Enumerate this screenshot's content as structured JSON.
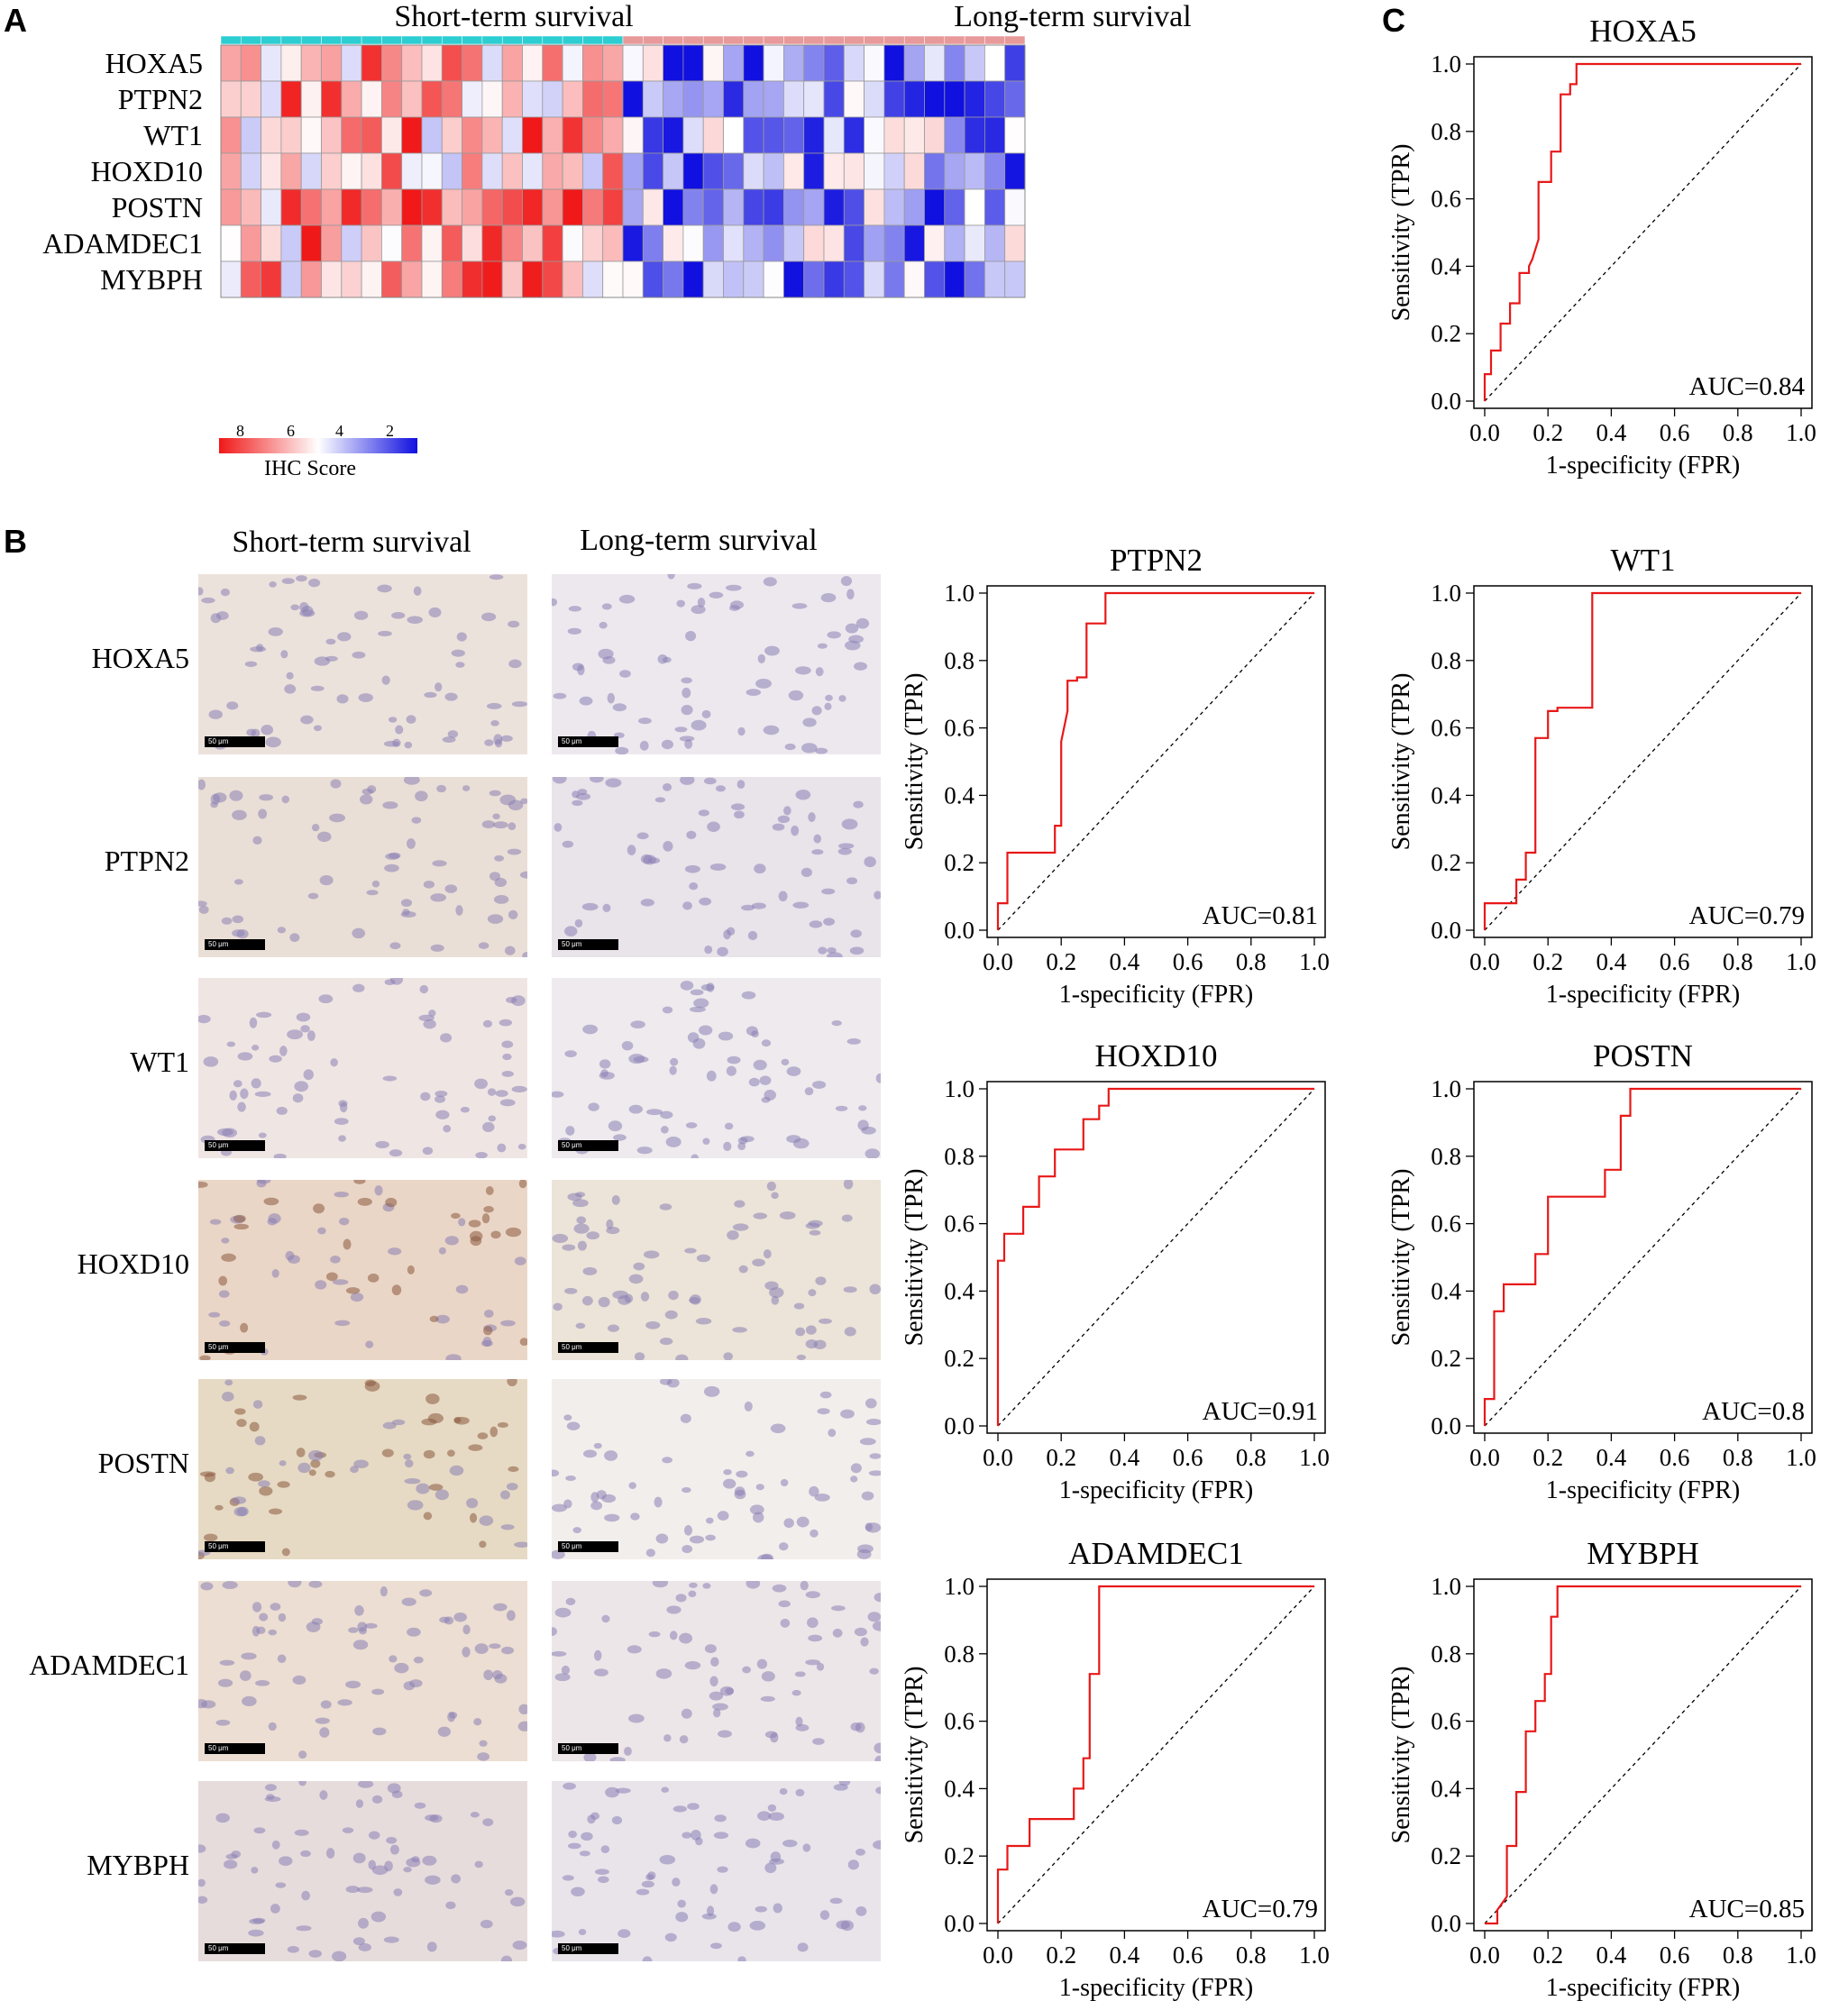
{
  "panel_letters": {
    "a": "A",
    "b": "B",
    "c": "C"
  },
  "heatmap": {
    "group_labels": {
      "short": "Short-term survival",
      "long": "Long-term survival"
    },
    "group_colors": {
      "short": "#2CCED2",
      "long": "#E8999A"
    },
    "rows": [
      "HOXA5",
      "PTPN2",
      "WT1",
      "HOXD10",
      "POSTN",
      "ADAMDEC1",
      "MYBPH"
    ],
    "legend_ticks": [
      "8",
      "6",
      "4",
      "2"
    ],
    "legend_title": "IHC Score",
    "colors": {
      "low": "#1010E0",
      "mid": "#FFFFFF",
      "high": "#F01818"
    }
  },
  "ihc": {
    "col_titles": [
      "Short-term survival",
      "Long-term survival"
    ],
    "rows": [
      "HOXA5",
      "PTPN2",
      "WT1",
      "HOXD10",
      "POSTN",
      "ADAMDEC1",
      "MYBPH"
    ],
    "scalebar": "50 μm"
  },
  "chart_data": [
    {
      "type": "line",
      "title": "HOXA5",
      "xlabel": "1-specificity (FPR)",
      "ylabel": "Sensitivity (TPR)",
      "auc_label": "AUC=0.84",
      "xlim": [
        0,
        1
      ],
      "ylim": [
        0,
        1
      ],
      "ticks": [
        "0.0",
        "0.2",
        "0.4",
        "0.6",
        "0.8",
        "1.0"
      ],
      "x": [
        0,
        0,
        0.02,
        0.02,
        0.05,
        0.05,
        0.08,
        0.08,
        0.11,
        0.11,
        0.14,
        0.14,
        0.15,
        0.17,
        0.17,
        0.21,
        0.21,
        0.24,
        0.24,
        0.27,
        0.27,
        0.29,
        0.29,
        1.0
      ],
      "y": [
        0,
        0.08,
        0.08,
        0.15,
        0.15,
        0.23,
        0.23,
        0.29,
        0.29,
        0.38,
        0.38,
        0.4,
        0.42,
        0.48,
        0.65,
        0.65,
        0.74,
        0.74,
        0.91,
        0.91,
        0.94,
        0.94,
        1.0,
        1.0
      ]
    },
    {
      "type": "line",
      "title": "PTPN2",
      "xlabel": "1-specificity (FPR)",
      "ylabel": "Sensitivity (TPR)",
      "auc_label": "AUC=0.81",
      "xlim": [
        0,
        1
      ],
      "ylim": [
        0,
        1
      ],
      "ticks": [
        "0.0",
        "0.2",
        "0.4",
        "0.6",
        "0.8",
        "1.0"
      ],
      "x": [
        0,
        0,
        0.03,
        0.03,
        0.18,
        0.18,
        0.2,
        0.2,
        0.22,
        0.22,
        0.25,
        0.25,
        0.28,
        0.28,
        0.34,
        0.34,
        1.0
      ],
      "y": [
        0,
        0.08,
        0.08,
        0.23,
        0.23,
        0.31,
        0.31,
        0.56,
        0.65,
        0.74,
        0.74,
        0.75,
        0.75,
        0.91,
        0.91,
        1.0,
        1.0
      ]
    },
    {
      "type": "line",
      "title": "WT1",
      "xlabel": "1-specificity (FPR)",
      "ylabel": "Sensitivity (TPR)",
      "auc_label": "AUC=0.79",
      "xlim": [
        0,
        1
      ],
      "ylim": [
        0,
        1
      ],
      "ticks": [
        "0.0",
        "0.2",
        "0.4",
        "0.6",
        "0.8",
        "1.0"
      ],
      "x": [
        0,
        0,
        0.1,
        0.1,
        0.13,
        0.13,
        0.16,
        0.16,
        0.2,
        0.2,
        0.23,
        0.23,
        0.34,
        0.34,
        1.0
      ],
      "y": [
        0,
        0.08,
        0.08,
        0.15,
        0.15,
        0.23,
        0.23,
        0.57,
        0.57,
        0.65,
        0.65,
        0.66,
        0.66,
        1.0,
        1.0
      ]
    },
    {
      "type": "line",
      "title": "HOXD10",
      "xlabel": "1-specificity (FPR)",
      "ylabel": "Sensitivity (TPR)",
      "auc_label": "AUC=0.91",
      "xlim": [
        0,
        1
      ],
      "ylim": [
        0,
        1
      ],
      "ticks": [
        "0.0",
        "0.2",
        "0.4",
        "0.6",
        "0.8",
        "1.0"
      ],
      "x": [
        0,
        0,
        0.02,
        0.02,
        0.08,
        0.08,
        0.13,
        0.13,
        0.18,
        0.18,
        0.27,
        0.27,
        0.32,
        0.32,
        0.35,
        0.35,
        1.0
      ],
      "y": [
        0,
        0.49,
        0.49,
        0.57,
        0.57,
        0.65,
        0.65,
        0.74,
        0.74,
        0.82,
        0.82,
        0.91,
        0.91,
        0.95,
        0.95,
        1.0,
        1.0
      ]
    },
    {
      "type": "line",
      "title": "POSTN",
      "xlabel": "1-specificity (FPR)",
      "ylabel": "Sensitivity (TPR)",
      "auc_label": "AUC=0.8",
      "xlim": [
        0,
        1
      ],
      "ylim": [
        0,
        1
      ],
      "ticks": [
        "0.0",
        "0.2",
        "0.4",
        "0.6",
        "0.8",
        "1.0"
      ],
      "x": [
        0,
        0,
        0.03,
        0.03,
        0.06,
        0.06,
        0.16,
        0.16,
        0.2,
        0.2,
        0.38,
        0.38,
        0.43,
        0.43,
        0.46,
        0.46,
        1.0
      ],
      "y": [
        0,
        0.08,
        0.08,
        0.34,
        0.34,
        0.42,
        0.42,
        0.51,
        0.51,
        0.68,
        0.68,
        0.76,
        0.76,
        0.92,
        0.92,
        1.0,
        1.0
      ]
    },
    {
      "type": "line",
      "title": "ADAMDEC1",
      "xlabel": "1-specificity (FPR)",
      "ylabel": "Sensitivity (TPR)",
      "auc_label": "AUC=0.79",
      "xlim": [
        0,
        1
      ],
      "ylim": [
        0,
        1
      ],
      "ticks": [
        "0.0",
        "0.2",
        "0.4",
        "0.6",
        "0.8",
        "1.0"
      ],
      "x": [
        0,
        0,
        0.03,
        0.03,
        0.1,
        0.1,
        0.24,
        0.24,
        0.27,
        0.27,
        0.29,
        0.29,
        0.32,
        0.32,
        1.0
      ],
      "y": [
        0,
        0.16,
        0.16,
        0.23,
        0.23,
        0.31,
        0.31,
        0.4,
        0.4,
        0.49,
        0.49,
        0.74,
        0.74,
        1.0,
        1.0
      ]
    },
    {
      "type": "line",
      "title": "MYBPH",
      "xlabel": "1-specificity (FPR)",
      "ylabel": "Sensitivity (TPR)",
      "auc_label": "AUC=0.85",
      "xlim": [
        0,
        1
      ],
      "ylim": [
        0,
        1
      ],
      "ticks": [
        "0.0",
        "0.2",
        "0.4",
        "0.6",
        "0.8",
        "1.0"
      ],
      "x": [
        0,
        0.04,
        0.04,
        0.07,
        0.07,
        0.1,
        0.1,
        0.13,
        0.13,
        0.16,
        0.16,
        0.19,
        0.19,
        0.21,
        0.21,
        0.23,
        0.23,
        0.27,
        0.27,
        1.0
      ],
      "y": [
        0,
        0,
        0.04,
        0.08,
        0.23,
        0.23,
        0.39,
        0.39,
        0.57,
        0.57,
        0.66,
        0.66,
        0.74,
        0.74,
        0.91,
        0.91,
        1.0,
        1.0,
        1.0,
        1.0
      ]
    }
  ]
}
